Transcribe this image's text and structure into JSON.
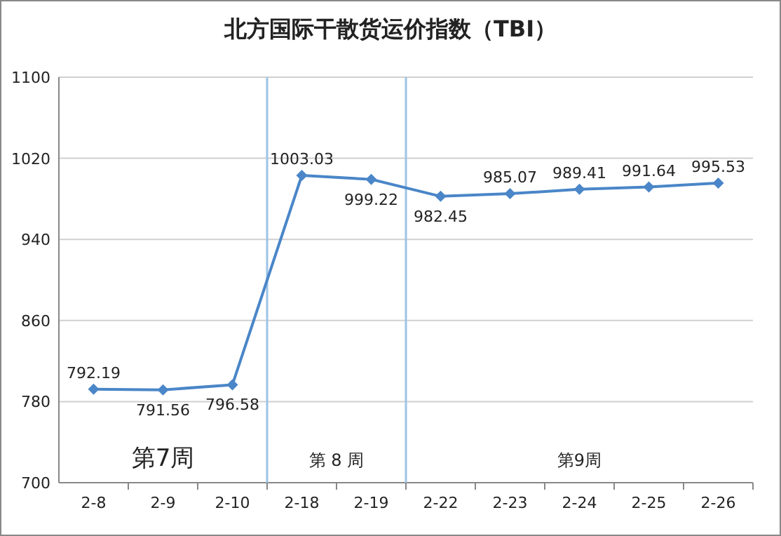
{
  "chart_data": {
    "type": "line",
    "title": "北方国际干散货运价指数（TBI）",
    "categories": [
      "2-8",
      "2-9",
      "2-10",
      "2-18",
      "2-19",
      "2-22",
      "2-23",
      "2-24",
      "2-25",
      "2-26"
    ],
    "series": [
      {
        "color": "#4a86c8",
        "values": [
          792.19,
          791.56,
          796.58,
          1003.03,
          999.22,
          982.45,
          985.07,
          989.41,
          991.64,
          995.53
        ]
      }
    ],
    "ylim": [
      700,
      1100
    ],
    "yticks": [
      700,
      780,
      860,
      940,
      1020,
      1100
    ],
    "grid": "y",
    "marker": "diamond",
    "line_style": "solid",
    "data_labels": true,
    "annotations": [
      "第7周",
      "第 8 周",
      "第9周"
    ]
  }
}
